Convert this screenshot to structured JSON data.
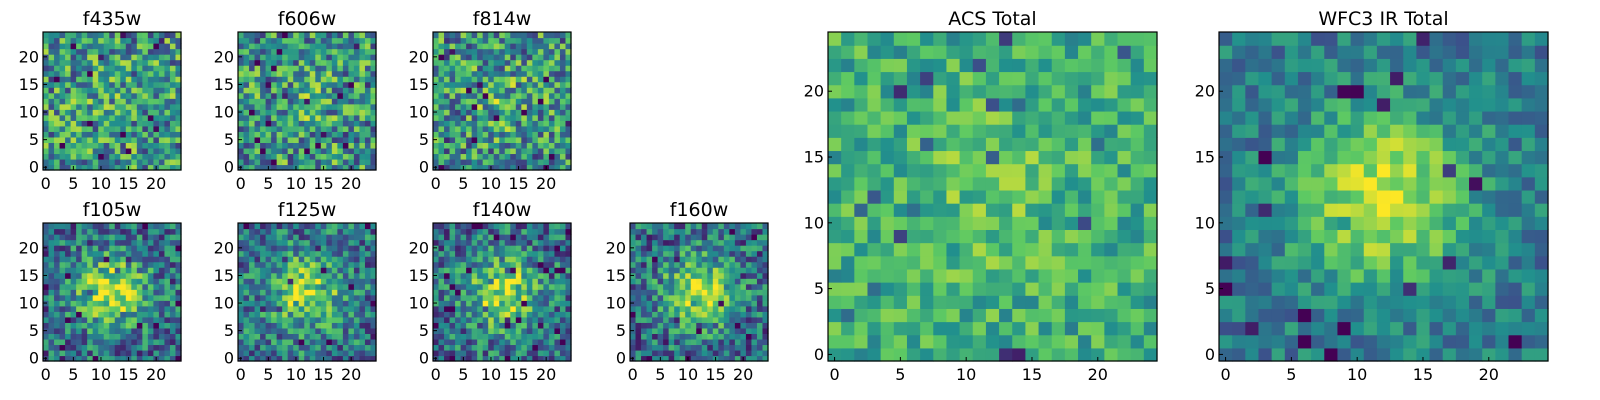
{
  "figure": {
    "colormap": "viridis",
    "colormap_stops": [
      "#440154",
      "#3b528b",
      "#21908d",
      "#5dc963",
      "#fde725"
    ]
  },
  "chart_data": [
    {
      "id": "f435w",
      "type": "heatmap",
      "title": "f435w",
      "grid_size": 25,
      "xlim": [
        0,
        24
      ],
      "ylim": [
        0,
        24
      ],
      "xticks": [
        0,
        5,
        10,
        15,
        20
      ],
      "yticks": [
        0,
        5,
        10,
        15,
        20
      ],
      "center_peak": 0.05,
      "noise": 0.55,
      "seed": 11,
      "min_level": 0.0
    },
    {
      "id": "f606w",
      "type": "heatmap",
      "title": "f606w",
      "grid_size": 25,
      "xlim": [
        0,
        24
      ],
      "ylim": [
        0,
        24
      ],
      "xticks": [
        0,
        5,
        10,
        15,
        20
      ],
      "yticks": [
        0,
        5,
        10,
        15,
        20
      ],
      "center_peak": 0.08,
      "noise": 0.55,
      "seed": 23,
      "min_level": 0.0
    },
    {
      "id": "f814w",
      "type": "heatmap",
      "title": "f814w",
      "grid_size": 25,
      "xlim": [
        0,
        24
      ],
      "ylim": [
        0,
        24
      ],
      "xticks": [
        0,
        5,
        10,
        15,
        20
      ],
      "yticks": [
        0,
        5,
        10,
        15,
        20
      ],
      "center_peak": 0.12,
      "noise": 0.55,
      "seed": 37,
      "min_level": 0.0
    },
    {
      "id": "f105w",
      "type": "heatmap",
      "title": "f105w",
      "grid_size": 25,
      "xlim": [
        0,
        24
      ],
      "ylim": [
        0,
        24
      ],
      "xticks": [
        0,
        5,
        10,
        15,
        20
      ],
      "yticks": [
        0,
        5,
        10,
        15,
        20
      ],
      "center_peak": 0.55,
      "noise": 0.45,
      "seed": 41,
      "min_level": 0.0
    },
    {
      "id": "f125w",
      "type": "heatmap",
      "title": "f125w",
      "grid_size": 25,
      "xlim": [
        0,
        24
      ],
      "ylim": [
        0,
        24
      ],
      "xticks": [
        0,
        5,
        10,
        15,
        20
      ],
      "yticks": [
        0,
        5,
        10,
        15,
        20
      ],
      "center_peak": 0.45,
      "noise": 0.45,
      "seed": 53,
      "min_level": 0.0
    },
    {
      "id": "f140w",
      "type": "heatmap",
      "title": "f140w",
      "grid_size": 25,
      "xlim": [
        0,
        24
      ],
      "ylim": [
        0,
        24
      ],
      "xticks": [
        0,
        5,
        10,
        15,
        20
      ],
      "yticks": [
        0,
        5,
        10,
        15,
        20
      ],
      "center_peak": 0.5,
      "noise": 0.45,
      "seed": 67,
      "min_level": 0.0
    },
    {
      "id": "f160w",
      "type": "heatmap",
      "title": "f160w",
      "grid_size": 25,
      "xlim": [
        0,
        24
      ],
      "ylim": [
        0,
        24
      ],
      "xticks": [
        0,
        5,
        10,
        15,
        20
      ],
      "yticks": [
        0,
        5,
        10,
        15,
        20
      ],
      "center_peak": 0.55,
      "noise": 0.45,
      "seed": 79,
      "min_level": 0.0
    },
    {
      "id": "acs_total",
      "type": "heatmap",
      "title": "ACS Total",
      "grid_size": 25,
      "xlim": [
        0,
        24
      ],
      "ylim": [
        0,
        24
      ],
      "xticks": [
        0,
        5,
        10,
        15,
        20
      ],
      "yticks": [
        0,
        5,
        10,
        15,
        20
      ],
      "center_peak": 0.15,
      "noise": 0.4,
      "seed": 97,
      "min_level": 0.25
    },
    {
      "id": "wfc3_ir_total",
      "type": "heatmap",
      "title": "WFC3 IR Total",
      "grid_size": 25,
      "xlim": [
        0,
        24
      ],
      "ylim": [
        0,
        24
      ],
      "xticks": [
        0,
        5,
        10,
        15,
        20
      ],
      "yticks": [
        0,
        5,
        10,
        15,
        20
      ],
      "center_peak": 0.6,
      "noise": 0.3,
      "seed": 113,
      "min_level": 0.1
    }
  ]
}
